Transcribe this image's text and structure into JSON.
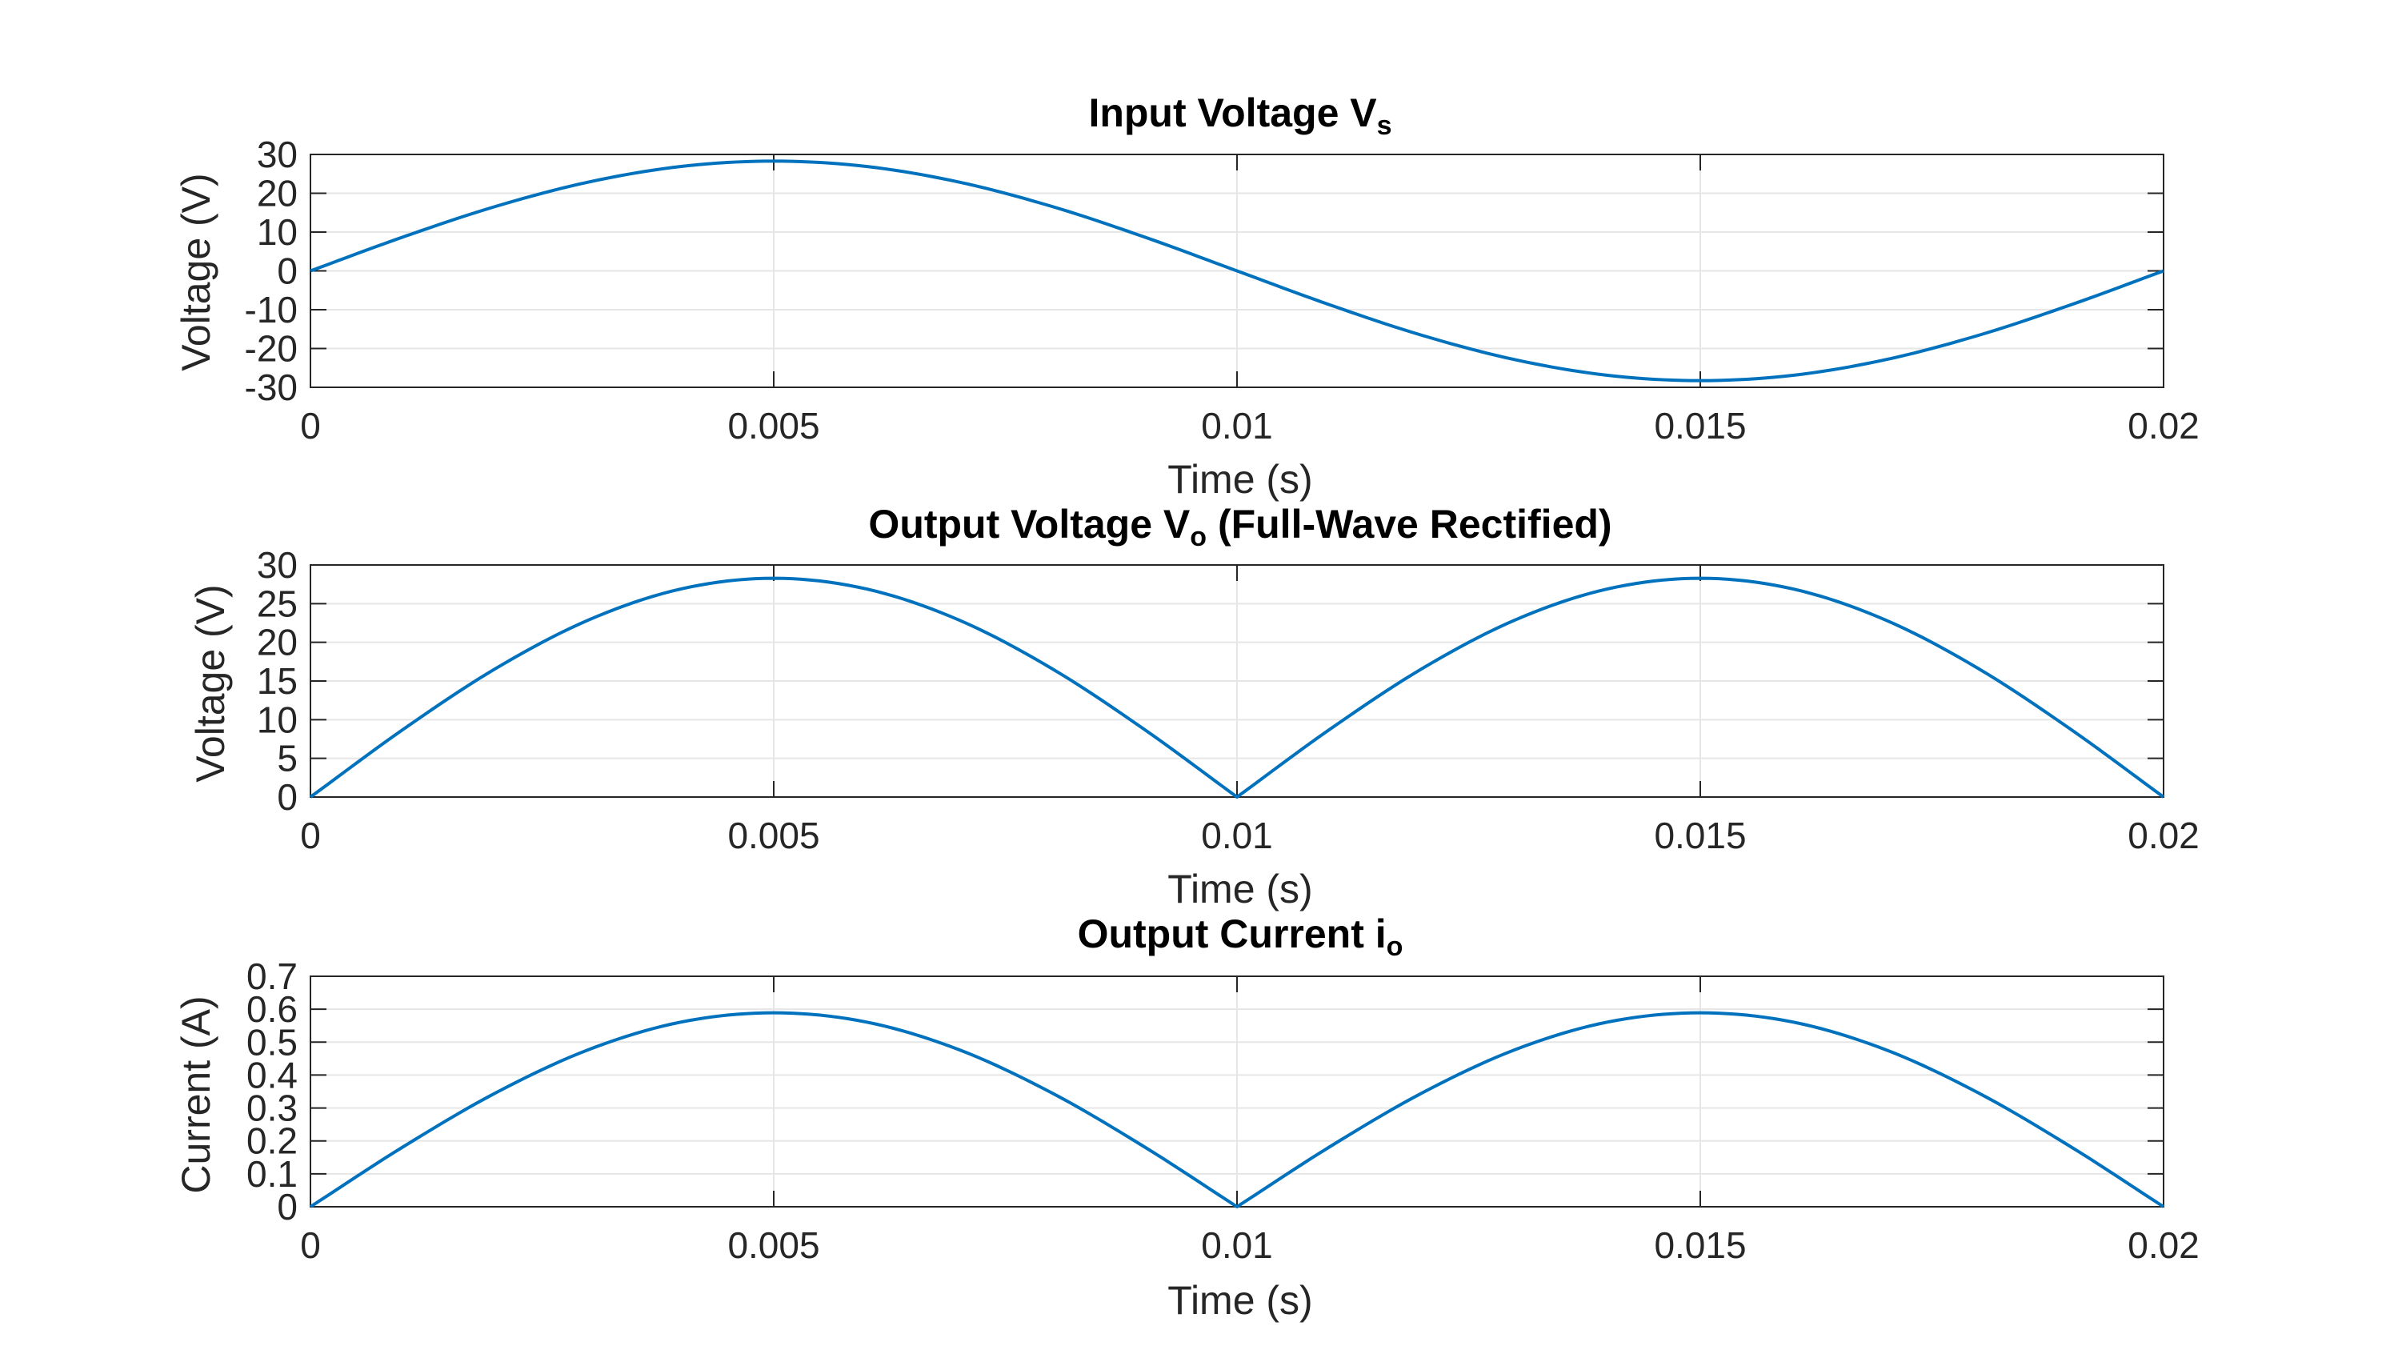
{
  "figure": {
    "line_color": "#0072BD",
    "background": "#ffffff",
    "axes_color": "#262626",
    "grid_color": "#e6e6e6"
  },
  "chart_data": [
    {
      "type": "line",
      "title": "Input Voltage V",
      "title_subscript": "s",
      "xlabel": "Time (s)",
      "ylabel": "Voltage (V)",
      "xlim": [
        0,
        0.02
      ],
      "ylim": [
        -30,
        30
      ],
      "xticks": [
        0,
        0.005,
        0.01,
        0.015,
        0.02
      ],
      "xtick_labels": [
        "0",
        "0.005",
        "0.01",
        "0.015",
        "0.02"
      ],
      "yticks": [
        -30,
        -20,
        -10,
        0,
        10,
        20,
        30
      ],
      "ytick_labels": [
        "-30",
        "-20",
        "-10",
        "0",
        "10",
        "20",
        "30"
      ],
      "grid": true,
      "series": [
        {
          "x": [
            0,
            0.001,
            0.002,
            0.003,
            0.004,
            0.005,
            0.006,
            0.007,
            0.008,
            0.009,
            0.01,
            0.011,
            0.012,
            0.013,
            0.014,
            0.015,
            0.016,
            0.017,
            0.018,
            0.019,
            0.02
          ],
          "y": [
            0,
            8.74,
            16.62,
            22.88,
            26.9,
            28.28,
            26.9,
            22.88,
            16.62,
            8.74,
            0,
            -8.74,
            -16.62,
            -22.88,
            -26.9,
            -28.28,
            -26.9,
            -22.88,
            -16.62,
            -8.74,
            0
          ]
        }
      ]
    },
    {
      "type": "line",
      "title": "Output Voltage V",
      "title_subscript": "o",
      "title_suffix": " (Full-Wave Rectified)",
      "xlabel": "Time (s)",
      "ylabel": "Voltage (V)",
      "xlim": [
        0,
        0.02
      ],
      "ylim": [
        0,
        30
      ],
      "xticks": [
        0,
        0.005,
        0.01,
        0.015,
        0.02
      ],
      "xtick_labels": [
        "0",
        "0.005",
        "0.01",
        "0.015",
        "0.02"
      ],
      "yticks": [
        0,
        5,
        10,
        15,
        20,
        25,
        30
      ],
      "ytick_labels": [
        "0",
        "5",
        "10",
        "15",
        "20",
        "25",
        "30"
      ],
      "grid": true,
      "series": [
        {
          "x": [
            0,
            0.001,
            0.002,
            0.003,
            0.004,
            0.005,
            0.006,
            0.007,
            0.008,
            0.009,
            0.01,
            0.011,
            0.012,
            0.013,
            0.014,
            0.015,
            0.016,
            0.017,
            0.018,
            0.019,
            0.02
          ],
          "y": [
            0,
            8.74,
            16.62,
            22.88,
            26.9,
            28.28,
            26.9,
            22.88,
            16.62,
            8.74,
            0,
            8.74,
            16.62,
            22.88,
            26.9,
            28.28,
            26.9,
            22.88,
            16.62,
            8.74,
            0
          ]
        }
      ]
    },
    {
      "type": "line",
      "title": "Output Current i",
      "title_subscript": "o",
      "xlabel": "Time (s)",
      "ylabel": "Current (A)",
      "xlim": [
        0,
        0.02
      ],
      "ylim": [
        0,
        0.7
      ],
      "xticks": [
        0,
        0.005,
        0.01,
        0.015,
        0.02
      ],
      "xtick_labels": [
        "0",
        "0.005",
        "0.01",
        "0.015",
        "0.02"
      ],
      "yticks": [
        0,
        0.1,
        0.2,
        0.3,
        0.4,
        0.5,
        0.6,
        0.7
      ],
      "ytick_labels": [
        "0",
        "0.1",
        "0.2",
        "0.3",
        "0.4",
        "0.5",
        "0.6",
        "0.7"
      ],
      "grid": true,
      "series": [
        {
          "x": [
            0,
            0.001,
            0.002,
            0.003,
            0.004,
            0.005,
            0.006,
            0.007,
            0.008,
            0.009,
            0.01,
            0.011,
            0.012,
            0.013,
            0.014,
            0.015,
            0.016,
            0.017,
            0.018,
            0.019,
            0.02
          ],
          "y": [
            0,
            0.182,
            0.346,
            0.477,
            0.561,
            0.589,
            0.561,
            0.477,
            0.346,
            0.182,
            0,
            0.182,
            0.346,
            0.477,
            0.561,
            0.589,
            0.561,
            0.477,
            0.346,
            0.182,
            0
          ]
        }
      ]
    }
  ]
}
